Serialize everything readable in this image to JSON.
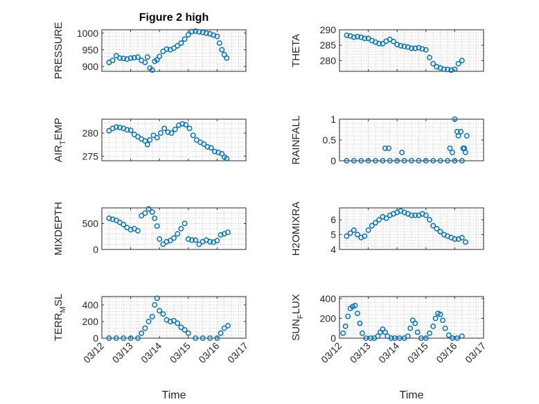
{
  "figure_title": "Figure 2 high",
  "chart_data": [
    {
      "type": "scatter",
      "id": "pressure",
      "ylabel": "PRESSURE",
      "ylabel_parts": [
        "PRESSURE"
      ],
      "ylim": [
        885,
        1010
      ],
      "yticks": [
        900,
        950,
        1000
      ],
      "xlim": [
        "2023-03-12",
        "2023-03-17"
      ],
      "x": [
        "2023-03-12 06:00",
        "2023-03-12 09:00",
        "2023-03-12 12:00",
        "2023-03-12 15:00",
        "2023-03-12 18:00",
        "2023-03-12 21:00",
        "2023-03-13 00:00",
        "2023-03-13 03:00",
        "2023-03-13 06:00",
        "2023-03-13 09:00",
        "2023-03-13 12:00",
        "2023-03-13 14:00",
        "2023-03-13 16:00",
        "2023-03-13 18:00",
        "2023-03-13 20:00",
        "2023-03-13 22:00",
        "2023-03-14 00:00",
        "2023-03-14 03:00",
        "2023-03-14 06:00",
        "2023-03-14 09:00",
        "2023-03-14 12:00",
        "2023-03-14 15:00",
        "2023-03-14 18:00",
        "2023-03-14 21:00",
        "2023-03-15 00:00",
        "2023-03-15 03:00",
        "2023-03-15 06:00",
        "2023-03-15 09:00",
        "2023-03-15 12:00",
        "2023-03-15 15:00",
        "2023-03-15 18:00",
        "2023-03-15 21:00",
        "2023-03-16 00:00",
        "2023-03-16 02:00",
        "2023-03-16 04:00",
        "2023-03-16 06:00",
        "2023-03-16 08:00"
      ],
      "y": [
        912,
        918,
        932,
        925,
        924,
        922,
        925,
        926,
        928,
        918,
        912,
        928,
        895,
        889,
        915,
        920,
        930,
        945,
        952,
        950,
        955,
        962,
        970,
        982,
        995,
        1005,
        1006,
        1004,
        1002,
        1000,
        998,
        994,
        990,
        970,
        950,
        935,
        925
      ]
    },
    {
      "type": "scatter",
      "id": "theta",
      "ylabel": "THETA",
      "ylabel_parts": [
        "THETA"
      ],
      "ylim": [
        276.5,
        290
      ],
      "yticks": [
        280,
        285,
        290
      ],
      "xlim": [
        "2023-03-12",
        "2023-03-17"
      ],
      "x": [
        "2023-03-12 06:00",
        "2023-03-12 09:00",
        "2023-03-12 12:00",
        "2023-03-12 15:00",
        "2023-03-12 18:00",
        "2023-03-12 21:00",
        "2023-03-13 00:00",
        "2023-03-13 03:00",
        "2023-03-13 06:00",
        "2023-03-13 09:00",
        "2023-03-13 12:00",
        "2023-03-13 15:00",
        "2023-03-13 18:00",
        "2023-03-13 21:00",
        "2023-03-14 00:00",
        "2023-03-14 03:00",
        "2023-03-14 06:00",
        "2023-03-14 09:00",
        "2023-03-14 12:00",
        "2023-03-14 15:00",
        "2023-03-14 18:00",
        "2023-03-14 21:00",
        "2023-03-15 00:00",
        "2023-03-15 03:00",
        "2023-03-15 06:00",
        "2023-03-15 09:00",
        "2023-03-15 12:00",
        "2023-03-15 15:00",
        "2023-03-15 18:00",
        "2023-03-15 21:00",
        "2023-03-16 00:00",
        "2023-03-16 03:00",
        "2023-03-16 06:00"
      ],
      "y": [
        288.2,
        288,
        287.6,
        287.8,
        287.6,
        287.2,
        287.2,
        286.5,
        286,
        285.5,
        285.5,
        286.3,
        286.9,
        286.2,
        285.2,
        284.8,
        284.6,
        284.4,
        284,
        284,
        284.2,
        283.8,
        283.5,
        281,
        279,
        278,
        277.6,
        277.2,
        277.1,
        276.9,
        277.2,
        279,
        280
      ]
    },
    {
      "type": "scatter",
      "id": "air-temp",
      "ylabel": "AIR_TEMP",
      "ylabel_parts": [
        "AIR",
        "T",
        "EMP"
      ],
      "ylim": [
        274,
        283
      ],
      "yticks": [
        275,
        280
      ],
      "xlim": [
        "2023-03-12",
        "2023-03-17"
      ],
      "x": [
        "2023-03-12 06:00",
        "2023-03-12 09:00",
        "2023-03-12 12:00",
        "2023-03-12 15:00",
        "2023-03-12 18:00",
        "2023-03-12 21:00",
        "2023-03-13 00:00",
        "2023-03-13 03:00",
        "2023-03-13 06:00",
        "2023-03-13 09:00",
        "2023-03-13 12:00",
        "2023-03-13 14:00",
        "2023-03-13 16:00",
        "2023-03-13 19:00",
        "2023-03-13 22:00",
        "2023-03-14 01:00",
        "2023-03-14 04:00",
        "2023-03-14 07:00",
        "2023-03-14 10:00",
        "2023-03-14 13:00",
        "2023-03-14 16:00",
        "2023-03-14 19:00",
        "2023-03-14 22:00",
        "2023-03-15 01:00",
        "2023-03-15 04:00",
        "2023-03-15 07:00",
        "2023-03-15 10:00",
        "2023-03-15 13:00",
        "2023-03-15 16:00",
        "2023-03-15 19:00",
        "2023-03-15 22:00",
        "2023-03-16 01:00",
        "2023-03-16 04:00",
        "2023-03-16 06:00",
        "2023-03-16 08:00"
      ],
      "y": [
        280.5,
        281,
        281.3,
        281.2,
        281,
        280.7,
        280.6,
        279.7,
        279.2,
        278.7,
        278.3,
        277.5,
        278.5,
        279.5,
        279,
        280,
        281,
        280.2,
        280,
        280.8,
        281.7,
        282,
        281.8,
        281,
        279.5,
        278.5,
        278,
        277.6,
        277,
        276.8,
        276,
        275.8,
        275.5,
        274.8,
        274.5
      ]
    },
    {
      "type": "scatter",
      "id": "rainfall",
      "ylabel": "RAINFALL",
      "ylabel_parts": [
        "RAINFALL"
      ],
      "ylim": [
        0,
        1
      ],
      "yticks": [
        0,
        0.5,
        1
      ],
      "xlim": [
        "2023-03-12",
        "2023-03-17"
      ],
      "x": [
        "2023-03-12 06:00",
        "2023-03-12 12:00",
        "2023-03-12 18:00",
        "2023-03-13 00:00",
        "2023-03-13 06:00",
        "2023-03-13 12:00",
        "2023-03-13 18:00",
        "2023-03-14 00:00",
        "2023-03-14 06:00",
        "2023-03-14 12:00",
        "2023-03-14 18:00",
        "2023-03-15 00:00",
        "2023-03-15 06:00",
        "2023-03-15 12:00",
        "2023-03-15 18:00",
        "2023-03-16 00:00",
        "2023-03-13 14:00",
        "2023-03-13 17:00",
        "2023-03-14 04:00",
        "2023-03-15 20:00",
        "2023-03-15 22:00",
        "2023-03-16 00:00",
        "2023-03-16 02:00",
        "2023-03-16 03:00",
        "2023-03-16 05:00",
        "2023-03-16 06:00",
        "2023-03-16 07:00",
        "2023-03-16 08:00",
        "2023-03-16 09:00",
        "2023-03-16 10:00"
      ],
      "y": [
        0,
        0,
        0,
        0,
        0,
        0,
        0,
        0,
        0,
        0,
        0,
        0,
        0,
        0,
        0,
        0,
        0.3,
        0.3,
        0.2,
        0.3,
        0.2,
        1.0,
        0.7,
        0.6,
        0.7,
        0,
        0.3,
        0.3,
        0.2,
        0.6
      ]
    },
    {
      "type": "scatter",
      "id": "mixdepth",
      "ylabel": "MIXDEPTH",
      "ylabel_parts": [
        "MIXDEPTH"
      ],
      "ylim": [
        0,
        800
      ],
      "yticks": [
        0,
        500
      ],
      "xlim": [
        "2023-03-12",
        "2023-03-17"
      ],
      "x": [
        "2023-03-12 06:00",
        "2023-03-12 09:00",
        "2023-03-12 12:00",
        "2023-03-12 15:00",
        "2023-03-12 18:00",
        "2023-03-12 21:00",
        "2023-03-13 00:00",
        "2023-03-13 03:00",
        "2023-03-13 06:00",
        "2023-03-13 09:00",
        "2023-03-13 12:00",
        "2023-03-13 15:00",
        "2023-03-13 18:00",
        "2023-03-13 20:00",
        "2023-03-13 22:00",
        "2023-03-14 00:00",
        "2023-03-14 03:00",
        "2023-03-14 06:00",
        "2023-03-14 09:00",
        "2023-03-14 12:00",
        "2023-03-14 15:00",
        "2023-03-14 18:00",
        "2023-03-14 21:00",
        "2023-03-15 00:00",
        "2023-03-15 03:00",
        "2023-03-15 06:00",
        "2023-03-15 09:00",
        "2023-03-15 12:00",
        "2023-03-15 15:00",
        "2023-03-15 18:00",
        "2023-03-15 21:00",
        "2023-03-16 00:00",
        "2023-03-16 03:00",
        "2023-03-16 06:00",
        "2023-03-16 09:00"
      ],
      "y": [
        600,
        580,
        560,
        520,
        480,
        420,
        380,
        400,
        360,
        650,
        700,
        780,
        720,
        600,
        450,
        200,
        100,
        150,
        170,
        220,
        300,
        400,
        500,
        200,
        180,
        180,
        100,
        150,
        180,
        150,
        140,
        170,
        280,
        300,
        330
      ]
    },
    {
      "type": "scatter",
      "id": "h2omixra",
      "ylabel": "H2OMIXRA",
      "ylabel_parts": [
        "H2OMIXRA"
      ],
      "ylim": [
        4,
        6.8
      ],
      "yticks": [
        4,
        5,
        6
      ],
      "xlim": [
        "2023-03-12",
        "2023-03-17"
      ],
      "x": [
        "2023-03-12 06:00",
        "2023-03-12 09:00",
        "2023-03-12 12:00",
        "2023-03-12 15:00",
        "2023-03-12 18:00",
        "2023-03-12 21:00",
        "2023-03-13 00:00",
        "2023-03-13 03:00",
        "2023-03-13 06:00",
        "2023-03-13 09:00",
        "2023-03-13 12:00",
        "2023-03-13 15:00",
        "2023-03-13 18:00",
        "2023-03-13 21:00",
        "2023-03-14 00:00",
        "2023-03-14 03:00",
        "2023-03-14 06:00",
        "2023-03-14 09:00",
        "2023-03-14 12:00",
        "2023-03-14 15:00",
        "2023-03-14 18:00",
        "2023-03-14 21:00",
        "2023-03-15 00:00",
        "2023-03-15 03:00",
        "2023-03-15 06:00",
        "2023-03-15 09:00",
        "2023-03-15 12:00",
        "2023-03-15 15:00",
        "2023-03-15 18:00",
        "2023-03-15 21:00",
        "2023-03-16 00:00",
        "2023-03-16 03:00",
        "2023-03-16 06:00",
        "2023-03-16 09:00"
      ],
      "y": [
        4.9,
        5.1,
        5.3,
        5.0,
        4.8,
        4.9,
        5.3,
        5.6,
        5.8,
        6.0,
        6.2,
        6.1,
        6.3,
        6.4,
        6.5,
        6.6,
        6.5,
        6.4,
        6.3,
        6.3,
        6.3,
        6.4,
        6.3,
        6.0,
        5.6,
        5.4,
        5.2,
        5.0,
        4.9,
        4.8,
        4.7,
        4.7,
        4.8,
        4.5
      ]
    },
    {
      "type": "scatter",
      "id": "terr-msl",
      "ylabel": "TERR_MSL",
      "ylabel_parts": [
        "TERR",
        "M",
        "SL"
      ],
      "ylim": [
        0,
        500
      ],
      "yticks": [
        0,
        200,
        400
      ],
      "xlim": [
        "2023-03-12",
        "2023-03-17"
      ],
      "x": [
        "2023-03-12 06:00",
        "2023-03-12 12:00",
        "2023-03-12 18:00",
        "2023-03-13 00:00",
        "2023-03-13 06:00",
        "2023-03-13 09:00",
        "2023-03-13 12:00",
        "2023-03-13 15:00",
        "2023-03-13 18:00",
        "2023-03-13 20:00",
        "2023-03-13 22:00",
        "2023-03-14 00:00",
        "2023-03-14 03:00",
        "2023-03-14 06:00",
        "2023-03-14 09:00",
        "2023-03-14 12:00",
        "2023-03-14 15:00",
        "2023-03-14 18:00",
        "2023-03-14 21:00",
        "2023-03-15 00:00",
        "2023-03-15 06:00",
        "2023-03-15 12:00",
        "2023-03-15 18:00",
        "2023-03-16 00:00",
        "2023-03-16 03:00",
        "2023-03-16 06:00",
        "2023-03-16 09:00"
      ],
      "y": [
        0,
        0,
        0,
        0,
        0,
        60,
        120,
        200,
        260,
        400,
        480,
        330,
        290,
        220,
        200,
        210,
        180,
        130,
        100,
        60,
        0,
        0,
        0,
        0,
        60,
        120,
        150
      ]
    },
    {
      "type": "scatter",
      "id": "sun-flux",
      "ylabel": "SUN_FLUX",
      "ylabel_parts": [
        "SUN",
        "F",
        "LUX"
      ],
      "ylim": [
        0,
        420
      ],
      "yticks": [
        0,
        200,
        400
      ],
      "xlim": [
        "2023-03-12",
        "2023-03-17"
      ],
      "x": [
        "2023-03-12 03:00",
        "2023-03-12 05:00",
        "2023-03-12 07:00",
        "2023-03-12 09:00",
        "2023-03-12 11:00",
        "2023-03-12 13:00",
        "2023-03-12 15:00",
        "2023-03-12 17:00",
        "2023-03-12 19:00",
        "2023-03-12 22:00",
        "2023-03-13 02:00",
        "2023-03-13 05:00",
        "2023-03-13 08:00",
        "2023-03-13 10:00",
        "2023-03-13 12:00",
        "2023-03-13 14:00",
        "2023-03-13 16:00",
        "2023-03-13 19:00",
        "2023-03-13 22:00",
        "2023-03-14 02:00",
        "2023-03-14 06:00",
        "2023-03-14 09:00",
        "2023-03-14 11:00",
        "2023-03-14 13:00",
        "2023-03-14 15:00",
        "2023-03-14 17:00",
        "2023-03-14 20:00",
        "2023-03-15 00:00",
        "2023-03-15 03:00",
        "2023-03-15 06:00",
        "2023-03-15 08:00",
        "2023-03-15 10:00",
        "2023-03-15 12:00",
        "2023-03-15 14:00",
        "2023-03-15 16:00",
        "2023-03-15 19:00",
        "2023-03-15 22:00",
        "2023-03-16 02:00",
        "2023-03-16 06:00"
      ],
      "y": [
        50,
        120,
        220,
        300,
        320,
        330,
        250,
        150,
        50,
        0,
        0,
        0,
        20,
        60,
        90,
        60,
        20,
        0,
        0,
        0,
        0,
        20,
        100,
        180,
        150,
        60,
        0,
        0,
        50,
        120,
        200,
        250,
        240,
        180,
        100,
        30,
        0,
        0,
        20
      ]
    }
  ],
  "x_tick_labels": [
    "03/12",
    "03/13",
    "03/14",
    "03/15",
    "03/16",
    "03/17"
  ],
  "x_tick_dates": [
    "2023-03-12",
    "2023-03-13",
    "2023-03-14",
    "2023-03-15",
    "2023-03-16",
    "2023-03-17"
  ],
  "xlabel": "Time",
  "colors": {
    "marker": "#0072BD",
    "axes": "#262626",
    "grid": "#bfbfbf"
  }
}
